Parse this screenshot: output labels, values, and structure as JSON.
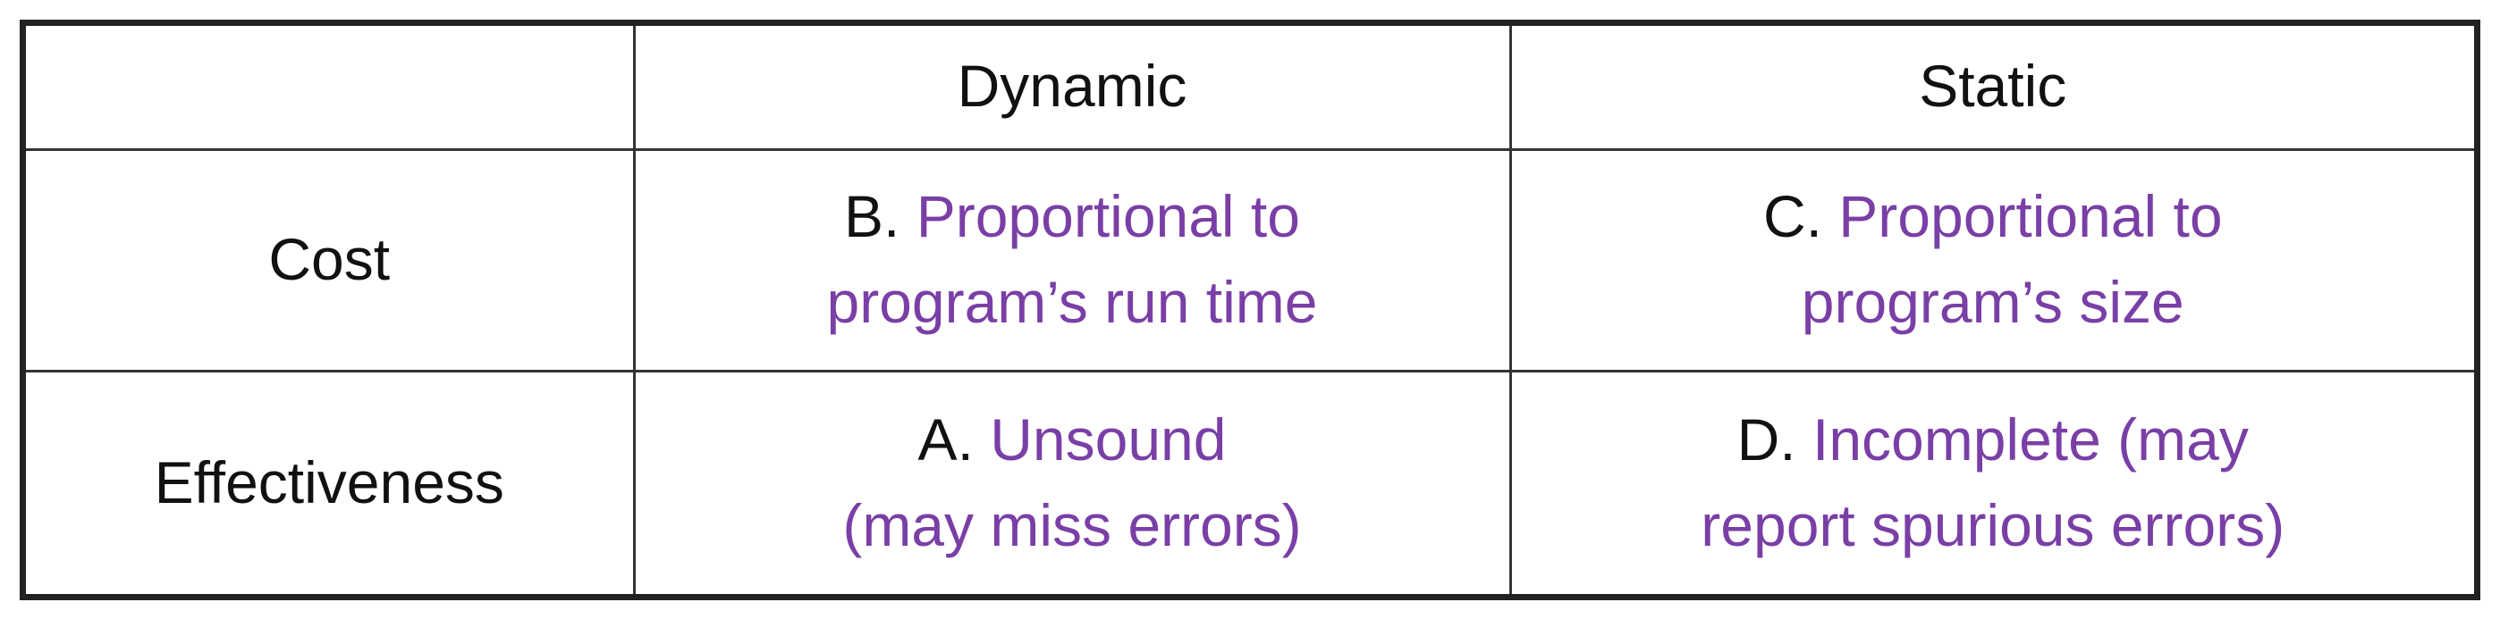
{
  "table": {
    "header": {
      "corner": "",
      "col_dynamic": "Dynamic",
      "col_static": "Static"
    },
    "rows": [
      {
        "label": "Cost",
        "dynamic": {
          "letter": "B.",
          "line1": "Proportional to",
          "line2": "program’s run time"
        },
        "static": {
          "letter": "C. ",
          "line1": "Proportional to",
          "line2": "program’s size"
        }
      },
      {
        "label": "Effectiveness",
        "dynamic": {
          "letter": "A.",
          "line1": "Unsound",
          "line2": "(may miss errors)"
        },
        "static": {
          "letter": "D.",
          "line1": "Incomplete (may",
          "line2": "report spurious errors)"
        }
      }
    ],
    "colors": {
      "text": "#111111",
      "answer_text": "#7a3fa6",
      "border": "#222222"
    }
  }
}
